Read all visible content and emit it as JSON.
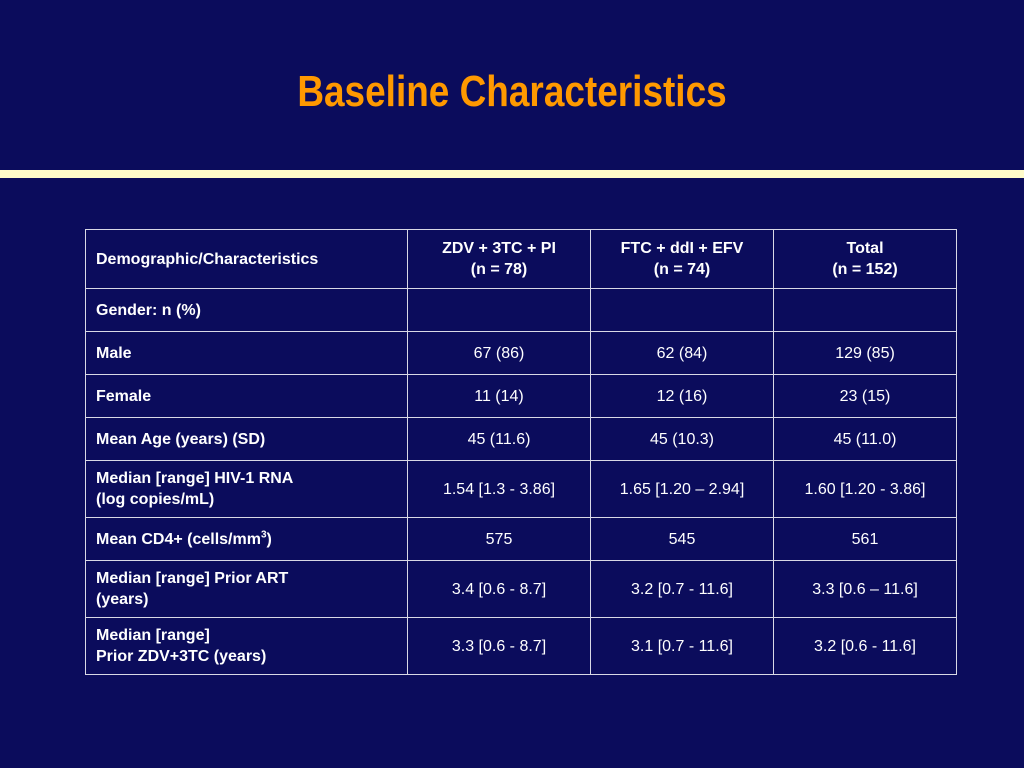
{
  "slide": {
    "title": "Baseline Characteristics"
  },
  "colors": {
    "background": "#0b0c5c",
    "title": "#ff9900",
    "rule": "#fffbc9",
    "text": "#ffffff",
    "grid": "#d9d9e6"
  },
  "table": {
    "headers": [
      {
        "line1": "Demographic/Characteristics",
        "line2": ""
      },
      {
        "line1": "ZDV + 3TC + PI",
        "line2": "(n = 78)"
      },
      {
        "line1": "FTC + ddI + EFV",
        "line2": "(n = 74)"
      },
      {
        "line1": "Total",
        "line2": "(n = 152)"
      }
    ],
    "rows": [
      {
        "label_line1": "Gender: n (%)",
        "label_line2": "",
        "values": [
          "",
          "",
          ""
        ]
      },
      {
        "label_line1": "Male",
        "label_line2": "",
        "values": [
          "67 (86)",
          "62 (84)",
          "129 (85)"
        ]
      },
      {
        "label_line1": "Female",
        "label_line2": "",
        "values": [
          "11 (14)",
          "12 (16)",
          "23 (15)"
        ]
      },
      {
        "label_line1": "Mean Age (years) (SD)",
        "label_line2": "",
        "values": [
          "45 (11.6)",
          "45 (10.3)",
          "45 (11.0)"
        ]
      },
      {
        "label_line1": "Median [range] HIV-1 RNA",
        "label_line2": "(log copies/mL)",
        "values": [
          "1.54 [1.3 - 3.86]",
          "1.65 [1.20 – 2.94]",
          "1.60 [1.20 - 3.86]"
        ]
      },
      {
        "label_pre": "Mean CD4+ (cells/mm",
        "label_sup": "3",
        "label_post": ")",
        "values": [
          "575",
          "545",
          "561"
        ]
      },
      {
        "label_line1": "Median [range] Prior ART",
        "label_line2": "(years)",
        "values": [
          "3.4 [0.6 - 8.7]",
          "3.2 [0.7 - 11.6]",
          "3.3 [0.6 – 11.6]"
        ]
      },
      {
        "label_line1": "Median [range]",
        "label_line2": "Prior ZDV+3TC (years)",
        "values": [
          "3.3 [0.6 - 8.7]",
          "3.1 [0.7 - 11.6]",
          "3.2 [0.6 - 11.6]"
        ]
      }
    ]
  }
}
